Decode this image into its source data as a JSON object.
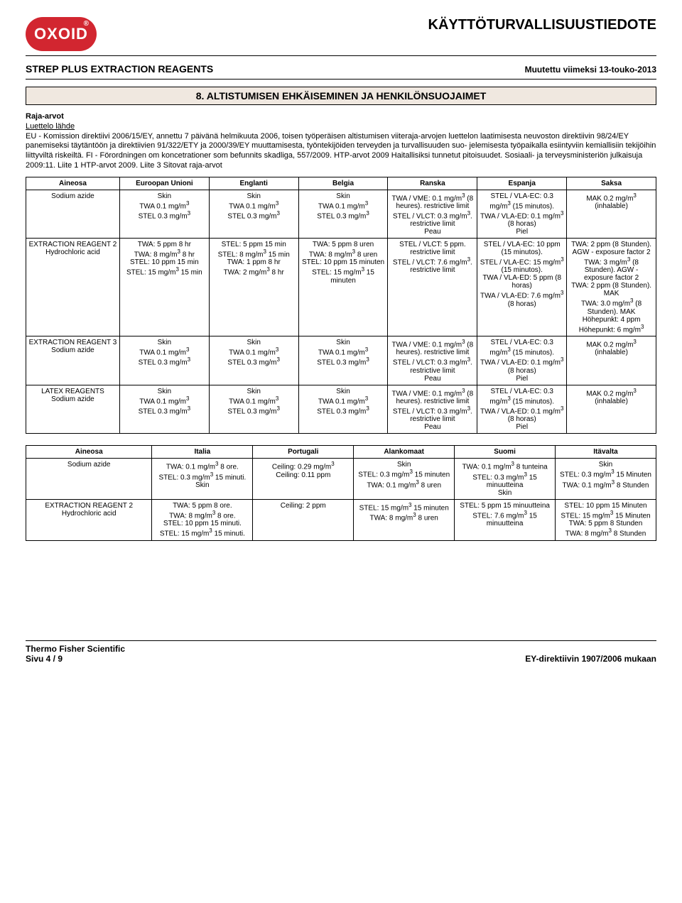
{
  "header": {
    "logo_text": "OXOID",
    "doc_title": "KÄYTTÖTURVALLISUUSTIEDOTE",
    "product_name": "STREP PLUS EXTRACTION REAGENTS",
    "revision": "Muutettu viimeksi 13-touko-2013"
  },
  "section8": {
    "title": "8. ALTISTUMISEN EHKÄISEMINEN JA HENKILÖNSUOJAIMET",
    "raja_label": "Raja-arvot",
    "luettelo_label": "Luettelo lähde",
    "body": "EU - Komission direktiivi 2006/15/EY, annettu 7 päivänä helmikuuta 2006, toisen työperäisen altistumisen viiteraja-arvojen luettelon laatimisesta neuvoston direktiivin 98/24/EY panemiseksi täytäntöön ja direktiivien 91/322/ETY ja 2000/39/EY muuttamisesta, työntekijöiden terveyden ja turvallisuuden suo- jelemisesta työpaikalla esiintyviin kemiallisiin tekijöihin liittyviltä riskeiltä. FI - Förordningen om koncetrationer som befunnits skadliga, 557/2009. HTP-arvot 2009 Haitallisiksi tunnetut pitoisuudet. Sosiaali- ja terveysministeriön julkaisuja 2009:11. Liite 1 HTP-arvot 2009. Liite 3 Sitovat raja-arvot"
  },
  "table1": {
    "headers": [
      "Aineosa",
      "Euroopan Unioni",
      "Englanti",
      "Belgia",
      "Ranska",
      "Espanja",
      "Saksa"
    ],
    "rows": [
      [
        "Sodium azide",
        "Skin\nTWA 0.1 mg/m³\nSTEL 0.3 mg/m³",
        "Skin\nTWA 0.1 mg/m³\nSTEL 0.3 mg/m³",
        "Skin\nTWA 0.1 mg/m³\nSTEL 0.3 mg/m³",
        "TWA / VME: 0.1 mg/m³ (8 heures). restrictive limit\nSTEL / VLCT: 0.3 mg/m³. restrictive limit\nPeau",
        "STEL / VLA-EC: 0.3 mg/m³ (15 minutos).\nTWA / VLA-ED: 0.1 mg/m³ (8 horas)\nPiel",
        "MAK 0.2 mg/m³ (inhalable)"
      ],
      [
        "EXTRACTION REAGENT 2\nHydrochloric acid",
        "TWA: 5 ppm 8 hr\nTWA: 8 mg/m³ 8 hr\nSTEL: 10 ppm 15 min\nSTEL: 15 mg/m³ 15 min",
        "STEL: 5 ppm 15 min\nSTEL: 8 mg/m³ 15 min\nTWA: 1 ppm 8 hr\nTWA: 2 mg/m³ 8 hr",
        "TWA: 5 ppm 8 uren\nTWA: 8 mg/m³ 8 uren\nSTEL: 10 ppm 15 minuten\nSTEL: 15 mg/m³ 15 minuten",
        "STEL / VLCT: 5 ppm. restrictive limit\nSTEL / VLCT: 7.6 mg/m³. restrictive limit",
        "STEL / VLA-EC: 10 ppm (15 minutos).\nSTEL / VLA-EC: 15 mg/m³ (15 minutos).\nTWA / VLA-ED: 5 ppm (8 horas)\nTWA / VLA-ED: 7.6 mg/m³ (8 horas)",
        "TWA: 2 ppm (8 Stunden). AGW - exposure factor 2\nTWA: 3 mg/m³ (8 Stunden). AGW - exposure factor 2\nTWA: 2 ppm (8 Stunden). MAK\nTWA: 3.0 mg/m³ (8 Stunden). MAK\nHöhepunkt: 4 ppm\nHöhepunkt: 6 mg/m³"
      ],
      [
        "EXTRACTION REAGENT 3\nSodium azide",
        "Skin\nTWA 0.1 mg/m³\nSTEL 0.3 mg/m³",
        "Skin\nTWA 0.1 mg/m³\nSTEL 0.3 mg/m³",
        "Skin\nTWA 0.1 mg/m³\nSTEL 0.3 mg/m³",
        "TWA / VME: 0.1 mg/m³ (8 heures). restrictive limit\nSTEL / VLCT: 0.3 mg/m³. restrictive limit\nPeau",
        "STEL / VLA-EC: 0.3 mg/m³ (15 minutos).\nTWA / VLA-ED: 0.1 mg/m³ (8 horas)\nPiel",
        "MAK 0.2 mg/m³ (inhalable)"
      ],
      [
        "LATEX REAGENTS\nSodium azide",
        "Skin\nTWA 0.1 mg/m³\nSTEL 0.3 mg/m³",
        "Skin\nTWA 0.1 mg/m³\nSTEL 0.3 mg/m³",
        "Skin\nTWA 0.1 mg/m³\nSTEL 0.3 mg/m³",
        "TWA / VME: 0.1 mg/m³ (8 heures). restrictive limit\nSTEL / VLCT: 0.3 mg/m³. restrictive limit\nPeau",
        "STEL / VLA-EC: 0.3 mg/m³ (15 minutos).\nTWA / VLA-ED: 0.1 mg/m³ (8 horas)\nPiel",
        "MAK 0.2 mg/m³ (inhalable)"
      ]
    ]
  },
  "table2": {
    "headers": [
      "Aineosa",
      "Italia",
      "Portugali",
      "Alankomaat",
      "Suomi",
      "Itävalta"
    ],
    "rows": [
      [
        "Sodium azide",
        "TWA: 0.1 mg/m³ 8 ore.\nSTEL: 0.3 mg/m³ 15 minuti.\nSkin",
        "Ceiling: 0.29 mg/m³\nCeiling: 0.11 ppm",
        "Skin\nSTEL: 0.3 mg/m³ 15 minuten\nTWA: 0.1 mg/m³ 8 uren",
        "TWA: 0.1 mg/m³ 8 tunteina\nSTEL: 0.3 mg/m³ 15 minuutteina\nSkin",
        "Skin\nSTEL: 0.3 mg/m³ 15 Minuten\nTWA: 0.1 mg/m³ 8 Stunden"
      ],
      [
        "EXTRACTION REAGENT 2\nHydrochloric acid",
        "TWA: 5 ppm 8 ore.\nTWA: 8 mg/m³ 8 ore.\nSTEL: 10 ppm 15 minuti.\nSTEL: 15 mg/m³ 15 minuti.",
        "Ceiling: 2 ppm",
        "STEL: 15 mg/m³ 15 minuten\nTWA: 8 mg/m³ 8 uren",
        "STEL: 5 ppm 15 minuutteina\nSTEL: 7.6 mg/m³ 15 minuutteina",
        "STEL: 10 ppm 15 Minuten\nSTEL: 15 mg/m³ 15 Minuten\nTWA: 5 ppm 8 Stunden\nTWA: 8 mg/m³ 8 Stunden"
      ]
    ]
  },
  "footer": {
    "company": "Thermo Fisher Scientific",
    "page": "Sivu  4 / 9",
    "directive": "EY-direktiivin 1907/2006 mukaan"
  },
  "colors": {
    "logo_bg": "#d22630",
    "section_bg": "#f0e8e0",
    "border": "#000000",
    "text": "#000000",
    "background": "#ffffff"
  }
}
